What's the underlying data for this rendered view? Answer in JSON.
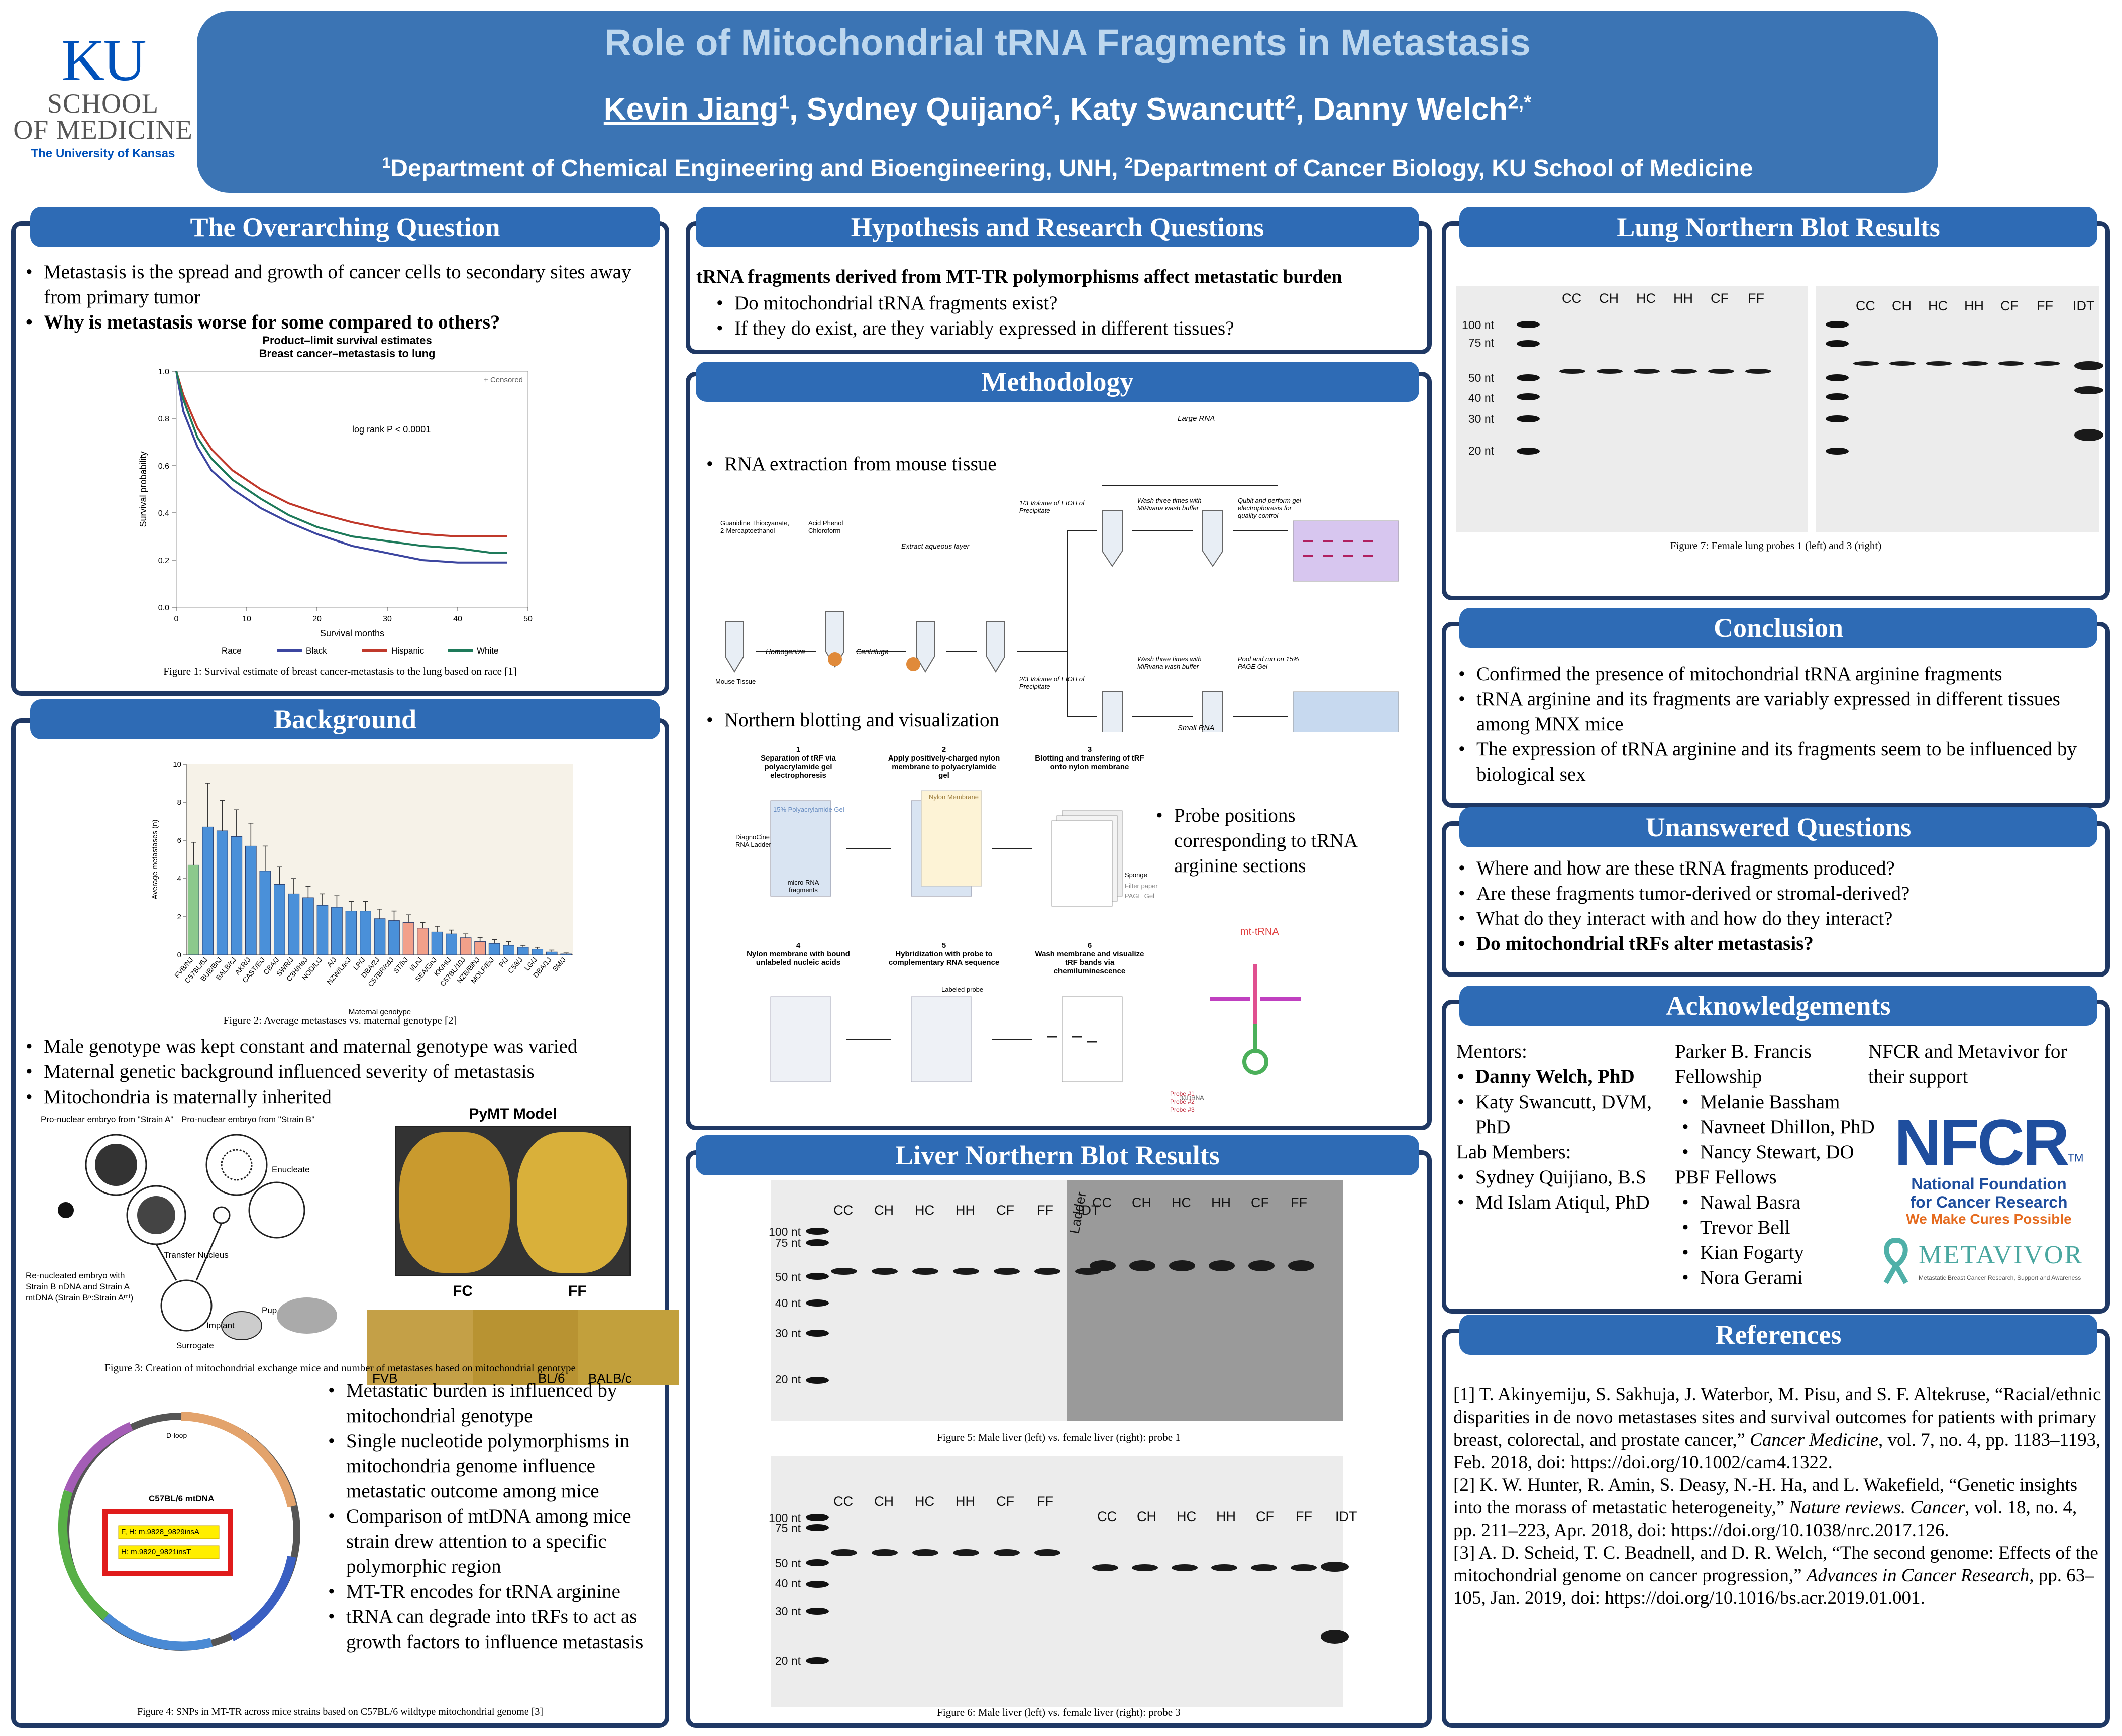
{
  "header": {
    "title": "Role of Mitochondrial tRNA Fragments in Metastasis",
    "author1": "Kevin Jiang",
    "author1_sup": "1",
    "author2": ", Sydney Quijano",
    "author2_sup": "2",
    "author3": ", Katy Swancutt",
    "author3_sup": "2",
    "author4": ", Danny Welch",
    "author4_sup": "2,*",
    "affil_sup1": "1",
    "affil1": "Department of Chemical Engineering and Bioengineering, UNH, ",
    "affil_sup2": "2",
    "affil2": "Department of Cancer Biology, KU School of Medicine"
  },
  "logo": {
    "ku": "KU",
    "school1": "SCHOOL",
    "school2": "OF MEDICINE",
    "uni": "The University of Kansas"
  },
  "overarching": {
    "heading": "The Overarching Question",
    "bullets": [
      "Metastasis is the spread and growth of cancer cells to secondary sites away from primary tumor",
      "Why is metastasis worse for some compared to others?"
    ],
    "fig_title1": "Product–limit survival estimates",
    "fig_title2": "Breast cancer–metastasis to lung",
    "censored": "+ Censored",
    "logrank": "log rank P < 0.0001",
    "ylabel": "Survival probability",
    "xlabel": "Survival months",
    "race_label": "Race",
    "caption": "Figure 1: Survival estimate of breast cancer-metastasis to the lung based on race [1]"
  },
  "chart_data": [
    {
      "type": "line",
      "title": "Product–limit survival estimates",
      "subtitle": "Breast cancer–metastasis to lung",
      "xlabel": "Survival months",
      "ylabel": "Survival probability",
      "xlim": [
        0,
        50
      ],
      "ylim": [
        0,
        1.0
      ],
      "xticks": [
        0,
        10,
        20,
        30,
        40,
        50
      ],
      "yticks": [
        0.0,
        0.2,
        0.4,
        0.6,
        0.8,
        1.0
      ],
      "legend": "bottom",
      "series": [
        {
          "name": "Black",
          "color": "#3c46a0",
          "x": [
            0,
            1,
            3,
            5,
            8,
            12,
            16,
            20,
            25,
            30,
            35,
            40,
            45,
            47
          ],
          "y": [
            1.0,
            0.83,
            0.68,
            0.58,
            0.5,
            0.42,
            0.36,
            0.31,
            0.26,
            0.23,
            0.2,
            0.19,
            0.19,
            0.19
          ]
        },
        {
          "name": "Hispanic",
          "color": "#c0392b",
          "x": [
            0,
            1,
            3,
            5,
            8,
            12,
            16,
            20,
            25,
            30,
            35,
            40,
            45,
            47
          ],
          "y": [
            1.0,
            0.9,
            0.76,
            0.67,
            0.58,
            0.5,
            0.44,
            0.4,
            0.36,
            0.33,
            0.31,
            0.3,
            0.3,
            0.3
          ]
        },
        {
          "name": "White",
          "color": "#1e7a5a",
          "x": [
            0,
            1,
            3,
            5,
            8,
            12,
            16,
            20,
            25,
            30,
            35,
            40,
            45,
            47
          ],
          "y": [
            1.0,
            0.88,
            0.72,
            0.63,
            0.54,
            0.46,
            0.39,
            0.34,
            0.3,
            0.28,
            0.26,
            0.25,
            0.23,
            0.23
          ]
        }
      ]
    },
    {
      "type": "bar",
      "ylabel": "Average metastases (n)",
      "xlabel": "Maternal genotype",
      "ylim": [
        0,
        10
      ],
      "yticks": [
        0,
        2,
        4,
        6,
        8,
        10
      ],
      "categories": [
        "FVB/NJ",
        "C57BL/6J",
        "BUB/BnJ",
        "BALB/cJ",
        "AKR/J",
        "CAST/EiJ",
        "CBA/J",
        "SWR/J",
        "C3H/HeJ",
        "NOD/LtJ",
        "A/J",
        "NZW/LacJ",
        "LP/J",
        "DBA/2J",
        "C57BR/cdJ",
        "ST/bJ",
        "I/LnJ",
        "SEA/GnJ",
        "KK/HIJ",
        "C57BL/10J",
        "NZB/BlNJ",
        "MOLF/EiJ",
        "P/J",
        "C58/J",
        "LG/J",
        "DBA/1J",
        "SM/J"
      ],
      "values": [
        4.7,
        6.7,
        6.5,
        6.2,
        5.7,
        4.4,
        3.7,
        3.2,
        3.0,
        2.6,
        2.5,
        2.3,
        2.3,
        1.9,
        1.8,
        1.7,
        1.4,
        1.2,
        1.1,
        0.9,
        0.7,
        0.6,
        0.5,
        0.4,
        0.3,
        0.15,
        0.05
      ],
      "errors": [
        1.2,
        2.3,
        1.6,
        1.4,
        1.2,
        1.3,
        0.9,
        0.8,
        0.6,
        0.6,
        0.6,
        0.5,
        0.5,
        0.5,
        0.5,
        0.4,
        0.3,
        0.3,
        0.2,
        0.2,
        0.2,
        0.2,
        0.2,
        0.1,
        0.1,
        0.1,
        0.05
      ]
    }
  ],
  "background": {
    "heading": "Background",
    "fig2_caption": "Figure 2: Average metastases vs. maternal genotype [2]",
    "bullets": [
      "Male genotype was kept constant and maternal genotype was varied",
      "Maternal genetic background influenced severity of metastasis",
      "Mitochondria is maternally inherited"
    ],
    "fig3": {
      "strainA": "Pro-nuclear embryo from \"Strain A\"",
      "strainB": "Pro-nuclear embryo from \"Strain B\"",
      "enucleate": "Enucleate",
      "transfer": "Transfer Nucleus",
      "reneucleated": "Re-nucleated embryo  with",
      "strainB_nDNA": "Strain B nDNA and Strain A",
      "mtDNA": "mtDNA (Strain Bⁿ:Strain Aᵐᵗ)",
      "implant": "Implant",
      "pup": "Pup",
      "surrogate": "Surrogate",
      "pymt": "PyMT Model",
      "fc": "FC",
      "ff": "FF",
      "fvb": "FVB",
      "bl6": "BL/6",
      "balbc": "BALB/c"
    },
    "fig3_caption": "Figure 3: Creation of mitochondrial exchange mice and number of metastases based on mitochondrial genotype",
    "fig4": {
      "center": "C57BL/6 mtDNA",
      "box1": "F, H: m.9828_9829insA",
      "box2": "H: m.9820_9821insT",
      "dloop": "D-loop"
    },
    "bullets2": [
      "Metastatic burden is influenced by mitochondrial genotype",
      "Single nucleotide polymorphisms in mitochondria genome influence metastatic outcome among mice",
      "Comparison of mtDNA among mice strain drew attention to a specific polymorphic region",
      "MT-TR encodes for tRNA arginine",
      "tRNA can degrade into tRFs to act as growth factors to influence metastasis"
    ],
    "fig4_caption": "Figure 4: SNPs in MT-TR across mice strains based on C57BL/6 wildtype mitochondrial genome [3]"
  },
  "hypothesis": {
    "heading": "Hypothesis and Research Questions",
    "main": "tRNA fragments derived from MT-TR polymorphisms affect metastatic burden",
    "bullets": [
      "Do mitochondrial tRNA fragments exist?",
      "If they do exist, are they variably expressed in different tissues?"
    ]
  },
  "methodology": {
    "heading": "Methodology",
    "b1": "RNA extraction from mouse tissue",
    "b2": "Northern blotting and visualization",
    "b3": "Probe positions corresponding to tRNA arginine sections",
    "large_rna": "Large RNA",
    "small_rna": "Small RNA",
    "homogenize": "Homogenize",
    "centrifuge": "Centrifuge",
    "extract": "Extract aqueous layer",
    "guanidine": "Guanidine Thiocyanate, 2-Mercaptoethanol",
    "acid": "Acid Phenol Chloroform",
    "mouse_tissue": "Mouse Tissue",
    "etoh1": "1/3 Volume of EtOH of Precipitate",
    "etoh2": "2/3 Volume of EtOH of Precipitate",
    "wash": "Wash three times with MiRvana wash buffer",
    "qubit": "Qubit and perform gel electrophoresis for quality control",
    "pool": "Pool and run on 15% PAGE Gel",
    "steps": [
      "Separation of tRF via polyacrylamide gel electrophoresis",
      "Apply positively-charged nylon membrane to polyacrylamide gel",
      "Blotting and transfering of tRF onto nylon membrane",
      "Nylon membrane with bound unlabeled nucleic acids",
      "Hybridization with probe to complementary RNA sequence",
      "Wash membrane and visualize tRF bands via chemiluminescence"
    ],
    "step_nums": [
      "1",
      "2",
      "3",
      "4",
      "5",
      "6"
    ],
    "gel": "15% Polyacrylamide Gel",
    "ladder": "DiagnoCine RNA Ladder",
    "micro": "micro RNA fragments",
    "nylon": "Nylon Membrane",
    "labeled_probe": "Labeled probe",
    "sponge": "Sponge",
    "filter": "Filter paper",
    "page": "PAGE Gel",
    "mt_trna": "mt-tRNA",
    "probe_labels": [
      "Total tRNA",
      "Probe #1",
      "Probe #2",
      "Probe #3"
    ]
  },
  "lung": {
    "heading": "Lung Northern Blot Results",
    "lanes_left": [
      "CC",
      "CH",
      "HC",
      "HH",
      "CF",
      "FF"
    ],
    "lanes_right": [
      "CC",
      "CH",
      "HC",
      "HH",
      "CF",
      "FF",
      "IDT"
    ],
    "nt": [
      "100 nt",
      "75 nt",
      "50 nt",
      "40 nt",
      "30 nt",
      "20 nt"
    ],
    "caption": "Figure 7: Female lung probes 1 (left) and 3 (right)"
  },
  "liver": {
    "heading": "Liver Northern Blot Results",
    "lanes_left1": [
      "CC",
      "CH",
      "HC",
      "HH",
      "CF",
      "FF",
      "IDT"
    ],
    "ladder": "Ladder",
    "lanes_right1": [
      "CC",
      "CH",
      "HC",
      "HH",
      "CF",
      "FF"
    ],
    "lanes_left2": [
      "CC",
      "CH",
      "HC",
      "HH",
      "CF",
      "FF"
    ],
    "lanes_right2": [
      "CC",
      "CH",
      "HC",
      "HH",
      "CF",
      "FF",
      "IDT"
    ],
    "nt": [
      "100 nt",
      "75 nt",
      "50 nt",
      "40 nt",
      "30 nt",
      "20 nt"
    ],
    "caption1": "Figure 5: Male liver (left) vs. female liver (right): probe 1",
    "caption2": "Figure 6: Male liver (left) vs. female liver (right): probe 3"
  },
  "conclusion": {
    "heading": "Conclusion",
    "bullets": [
      "Confirmed the presence of mitochondrial tRNA arginine fragments",
      "tRNA arginine and its fragments are variably expressed in different tissues among MNX mice",
      "The expression of tRNA arginine and its fragments seem to be influenced by biological sex"
    ]
  },
  "unanswered": {
    "heading": "Unanswered Questions",
    "bullets": [
      "Where and how are these tRNA fragments produced?",
      "Are these fragments tumor-derived or stromal-derived?",
      "What do they interact with and how do they interact?",
      "Do mitochondrial tRFs alter metastasis?"
    ]
  },
  "ack": {
    "heading": "Acknowledgements",
    "mentors": "Mentors:",
    "mentor_list": [
      "Danny Welch, PhD",
      "Katy Swancutt, DVM, PhD"
    ],
    "lab": "Lab Members:",
    "lab_list": [
      "Sydney Quijiano, B.S",
      "Md Islam Atiqul, PhD"
    ],
    "pbf_title": "Parker B. Francis Fellowship",
    "pbf_list": [
      "Melanie Bassham",
      "Navneet Dhillon, PhD",
      "Nancy Stewart, DO"
    ],
    "pbf_fellows": "PBF Fellows",
    "fellows_list": [
      "Nawal Basra",
      "Trevor Bell",
      "Kian Fogarty",
      "Nora Gerami"
    ],
    "nfcr_text": "NFCR and Metavivor for their support",
    "nfcr": "NFCR",
    "tm": "TM",
    "nfcr_name1": "National Foundation",
    "nfcr_name2": "for Cancer Research",
    "nfcr_tag": "We Make Cures Possible",
    "metavivor": "METAVIVOR",
    "metavivor_tag": "Metastatic Breast Cancer Research, Support and Awareness"
  },
  "references": {
    "heading": "References",
    "r1a": "[1] T. Akinyemiju, S. Sakhuja, J. Waterbor, M. Pisu, and S. F. Altekruse, “Racial/ethnic disparities in de novo metastases sites and survival outcomes for patients with primary breast, colorectal, and prostate cancer,” ",
    "r1i": "Cancer Medicine",
    "r1b": ", vol. 7, no. 4, pp. 1183–1193, Feb. 2018, doi: https://doi.org/10.1002/cam4.1322.",
    "r2a": "[2] K. W. Hunter, R. Amin, S. Deasy, N.-H. Ha, and L. Wakefield, “Genetic insights into the morass of metastatic heterogeneity,” ",
    "r2i": "Nature reviews. Cancer",
    "r2b": ", vol. 18, no. 4, pp. 211–223, Apr. 2018, doi: https://doi.org/10.1038/nrc.2017.126.",
    "r3a": "[3] A. D. Scheid, T. C. Beadnell, and D. R. Welch, “The second genome: Effects of the mitochondrial genome on cancer progression,” ",
    "r3i": "Advances in Cancer Research",
    "r3b": ", pp. 63–105, Jan. 2019, doi: https://doi.org/10.1016/bs.acr.2019.01.001."
  }
}
